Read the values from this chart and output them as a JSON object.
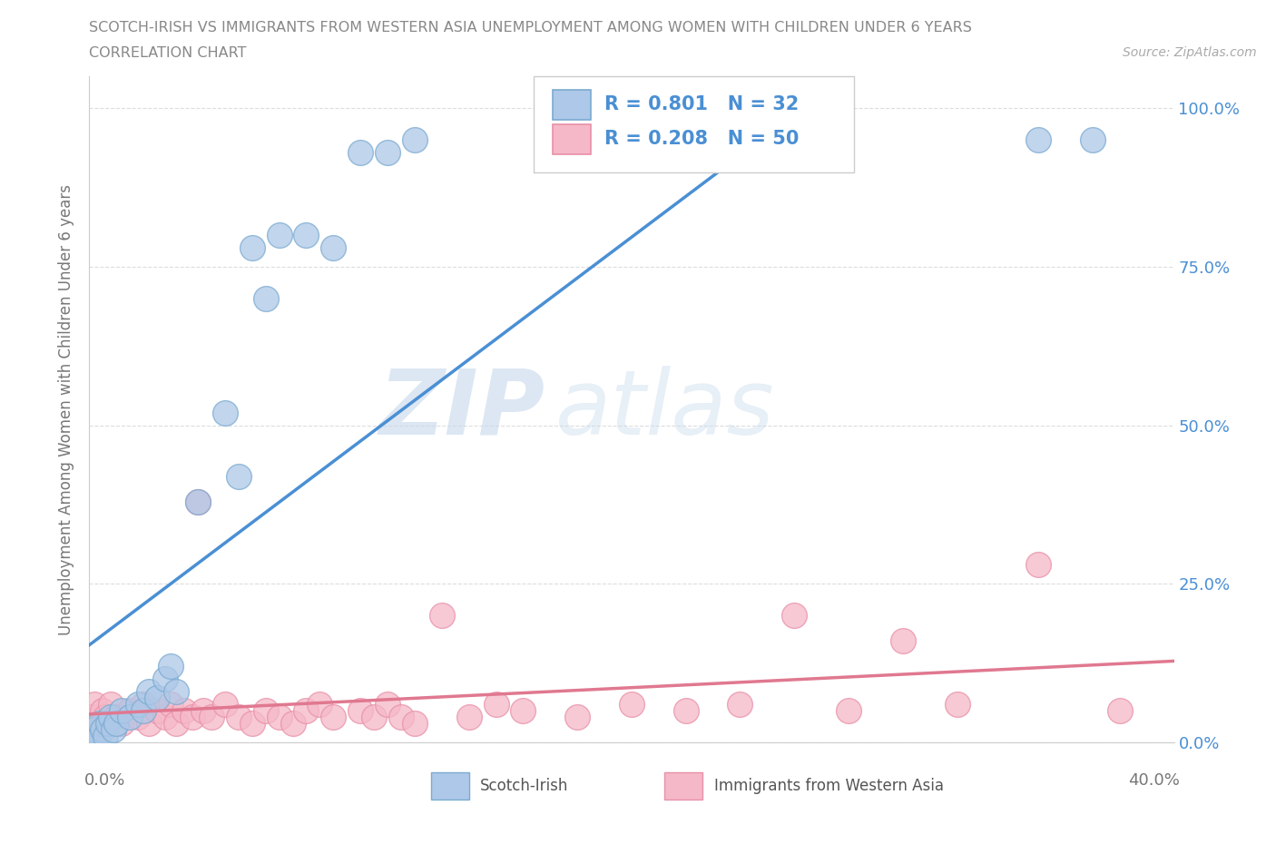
{
  "title_line1": "SCOTCH-IRISH VS IMMIGRANTS FROM WESTERN ASIA UNEMPLOYMENT AMONG WOMEN WITH CHILDREN UNDER 6 YEARS",
  "title_line2": "CORRELATION CHART",
  "source_text": "Source: ZipAtlas.com",
  "ylabel": "Unemployment Among Women with Children Under 6 years",
  "watermark_zip": "ZIP",
  "watermark_atlas": "atlas",
  "xlim": [
    0.0,
    0.4
  ],
  "ylim": [
    0.0,
    1.05
  ],
  "scotch_irish_R": 0.801,
  "scotch_irish_N": 32,
  "western_asia_R": 0.208,
  "western_asia_N": 50,
  "scotch_irish_color": "#adc8e8",
  "western_asia_color": "#f5b8c8",
  "scotch_irish_edge_color": "#7aaad0",
  "western_asia_edge_color": "#e890a8",
  "scotch_irish_line_color": "#4a8fd4",
  "western_asia_line_color": "#e07890",
  "legend_text_color": "#4a8fd4",
  "title_color": "#888888",
  "source_color": "#aaaaaa",
  "background_color": "#ffffff",
  "grid_color": "#dddddd",
  "scotch_irish_x": [
    0.001,
    0.002,
    0.003,
    0.004,
    0.005,
    0.006,
    0.007,
    0.008,
    0.009,
    0.01,
    0.012,
    0.015,
    0.018,
    0.02,
    0.022,
    0.025,
    0.028,
    0.03,
    0.032,
    0.04,
    0.05,
    0.055,
    0.06,
    0.065,
    0.07,
    0.08,
    0.09,
    0.1,
    0.11,
    0.12,
    0.35,
    0.37
  ],
  "scotch_irish_y": [
    0.01,
    0.02,
    0.01,
    0.03,
    0.02,
    0.01,
    0.03,
    0.04,
    0.02,
    0.03,
    0.05,
    0.04,
    0.06,
    0.05,
    0.08,
    0.07,
    0.1,
    0.12,
    0.08,
    0.38,
    0.52,
    0.42,
    0.78,
    0.7,
    0.8,
    0.8,
    0.78,
    0.93,
    0.93,
    0.95,
    0.95,
    0.95
  ],
  "western_asia_x": [
    0.001,
    0.002,
    0.003,
    0.005,
    0.006,
    0.007,
    0.008,
    0.01,
    0.012,
    0.015,
    0.018,
    0.02,
    0.022,
    0.025,
    0.028,
    0.03,
    0.032,
    0.035,
    0.038,
    0.04,
    0.042,
    0.045,
    0.05,
    0.055,
    0.06,
    0.065,
    0.07,
    0.075,
    0.08,
    0.085,
    0.09,
    0.1,
    0.105,
    0.11,
    0.115,
    0.12,
    0.13,
    0.14,
    0.15,
    0.16,
    0.18,
    0.2,
    0.22,
    0.24,
    0.26,
    0.28,
    0.3,
    0.32,
    0.35,
    0.38
  ],
  "western_asia_y": [
    0.04,
    0.06,
    0.03,
    0.05,
    0.04,
    0.03,
    0.06,
    0.04,
    0.03,
    0.05,
    0.04,
    0.06,
    0.03,
    0.05,
    0.04,
    0.06,
    0.03,
    0.05,
    0.04,
    0.38,
    0.05,
    0.04,
    0.06,
    0.04,
    0.03,
    0.05,
    0.04,
    0.03,
    0.05,
    0.06,
    0.04,
    0.05,
    0.04,
    0.06,
    0.04,
    0.03,
    0.2,
    0.04,
    0.06,
    0.05,
    0.04,
    0.06,
    0.05,
    0.06,
    0.2,
    0.05,
    0.16,
    0.06,
    0.28,
    0.05
  ]
}
